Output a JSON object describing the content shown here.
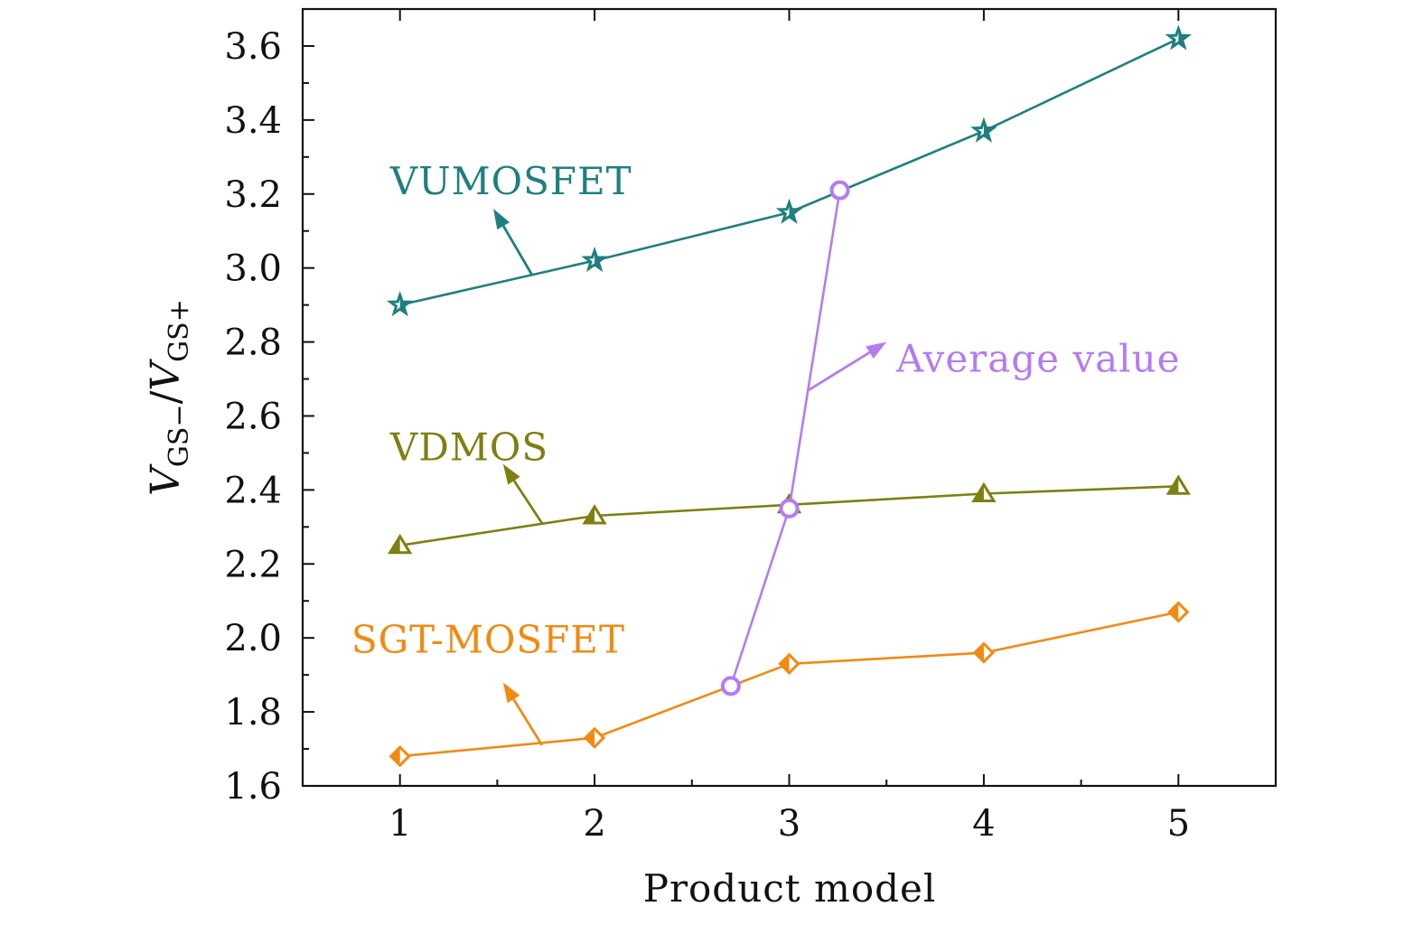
{
  "chart_data": {
    "type": "line",
    "xlabel": "Product model",
    "ylabel": {
      "numerator_main": "V",
      "numerator_sub": "GS−",
      "slash": "/",
      "denominator_main": "V",
      "denominator_sub": "GS+"
    },
    "xlim": [
      0.5,
      5.5
    ],
    "ylim": [
      1.6,
      3.7
    ],
    "x_ticks": [
      1,
      2,
      3,
      4,
      5
    ],
    "x_tick_labels": [
      "1",
      "2",
      "3",
      "4",
      "5"
    ],
    "y_ticks": [
      1.6,
      1.8,
      2.0,
      2.2,
      2.4,
      2.6,
      2.8,
      3.0,
      3.2,
      3.4,
      3.6
    ],
    "y_tick_labels": [
      "1.6",
      "1.8",
      "2.0",
      "2.2",
      "2.4",
      "2.6",
      "2.8",
      "3.0",
      "3.2",
      "3.4",
      "3.6"
    ],
    "grid": false,
    "series": [
      {
        "name": "VUMOSFET",
        "color": "#1f7f7f",
        "marker": "star",
        "x": [
          1,
          2,
          3,
          4,
          5
        ],
        "y": [
          2.9,
          3.02,
          3.15,
          3.37,
          3.62
        ]
      },
      {
        "name": "VDMOS",
        "color": "#7f7f12",
        "marker": "triangle",
        "x": [
          1,
          2,
          3,
          4,
          5
        ],
        "y": [
          2.25,
          2.33,
          2.36,
          2.39,
          2.41
        ]
      },
      {
        "name": "SGT-MOSFET",
        "color": "#f28a12",
        "marker": "diamond",
        "x": [
          1,
          2,
          3,
          4,
          5
        ],
        "y": [
          1.68,
          1.73,
          1.93,
          1.96,
          2.07
        ]
      },
      {
        "name": "Average value",
        "color": "#b57bf2",
        "marker": "circle",
        "x": [
          2.7,
          3.0,
          3.26
        ],
        "y": [
          1.87,
          2.35,
          3.21
        ]
      }
    ],
    "annotations": [
      {
        "text": "VUMOSFET",
        "series": "VUMOSFET",
        "text_anchor": [
          0.95,
          3.2
        ],
        "arrow_from": [
          1.68,
          2.98
        ],
        "arrow_to": [
          1.48,
          3.16
        ]
      },
      {
        "text": "VDMOS",
        "series": "VDMOS",
        "text_anchor": [
          0.95,
          2.48
        ],
        "arrow_from": [
          1.73,
          2.31
        ],
        "arrow_to": [
          1.53,
          2.47
        ]
      },
      {
        "text": "SGT-MOSFET",
        "series": "SGT-MOSFET",
        "text_anchor": [
          0.75,
          1.96
        ],
        "arrow_from": [
          1.73,
          1.71
        ],
        "arrow_to": [
          1.53,
          1.88
        ]
      },
      {
        "text": "Average value",
        "series": "Average value",
        "text_anchor": [
          3.55,
          2.72
        ],
        "arrow_from": [
          3.1,
          2.67
        ],
        "arrow_to": [
          3.5,
          2.8
        ]
      }
    ]
  }
}
